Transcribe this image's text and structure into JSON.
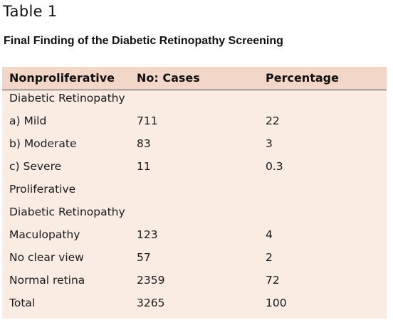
{
  "table_label": "Table 1",
  "caption": "Final Finding of the Diabetic Retinopathy Screening",
  "headers": [
    "Nonproliferative",
    "No: Cases",
    "Percentage"
  ],
  "rows": [
    [
      "Diabetic Retinopathy",
      "",
      ""
    ],
    [
      "a) Mild",
      "711",
      "22"
    ],
    [
      "b) Moderate",
      "83",
      "3"
    ],
    [
      "c) Severe",
      "11",
      "0.3"
    ],
    [
      "Proliferative",
      "",
      ""
    ],
    [
      "Diabetic Retinopathy",
      "",
      ""
    ],
    [
      "Maculopathy",
      "123",
      "4"
    ],
    [
      "No clear view",
      "57",
      "2"
    ],
    [
      "Normal retina",
      "2359",
      "72"
    ],
    [
      "Total",
      "3265",
      "100"
    ]
  ]
}
